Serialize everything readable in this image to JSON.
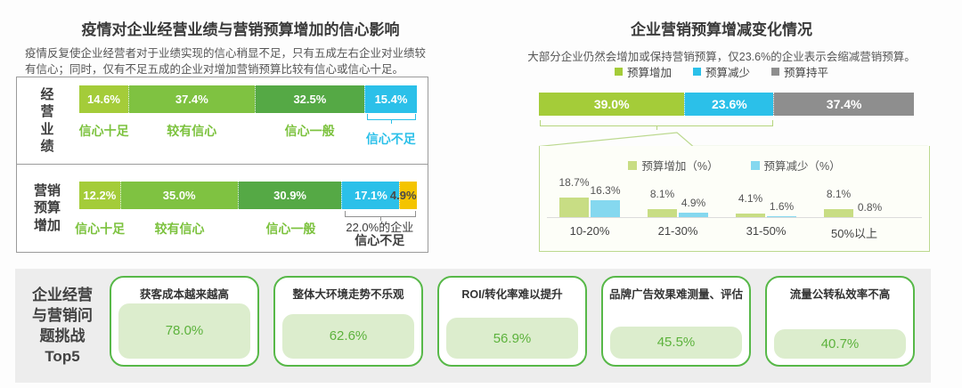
{
  "ui": {
    "left": {
      "title": "疫情对企业经营业绩与营销预算增加的信心影响",
      "subtitle": "疫情反复使企业经营者对于业绩实现的信心稍显不足，只有五成左右企业对业绩较有信心；同时，仅有不足五成的企业对增加营销预算比较有信心或信心十足。"
    },
    "right": {
      "title": "企业营销预算增减变化情况",
      "subtitle": "大部分企业仍然会增加或保持营销预算，仅23.6%的企业表示会缩减营销预算。",
      "legend": [
        {
          "label": "预算增加",
          "color": "#a4cc39"
        },
        {
          "label": "预算减少",
          "color": "#2bc0e9"
        },
        {
          "label": "预算持平",
          "color": "#8e8e8e"
        }
      ]
    },
    "bottom": {
      "label": "企业经营\n与营销问\n题挑战\nTop5"
    }
  },
  "chart_data": [
    {
      "id": "confidence-impact",
      "type": "bar",
      "variant": "horizontal-stacked-100",
      "title": "疫情对企业经营业绩与营销预算增加的信心影响",
      "unit": "%",
      "rows": [
        {
          "label": "经\n营\n业\n绩",
          "segments": [
            {
              "name": "信心十足",
              "value": 14.6,
              "color": "#a4cc39",
              "caption": "信心十足"
            },
            {
              "name": "较有信心",
              "value": 37.4,
              "color": "#7fc241",
              "caption": "较有信心"
            },
            {
              "name": "信心一般",
              "value": 32.5,
              "color": "#55a945",
              "caption": "信心一般"
            },
            {
              "name": "信心不足",
              "value": 15.4,
              "color": "#2bc0e9"
            }
          ],
          "brace": {
            "span_last": 1,
            "color": "#2bc0e9",
            "lines": [
              "信心不足"
            ],
            "text_color": "#2bc0e9",
            "bold_last_line": true
          }
        },
        {
          "label": "营销\n预算\n增加",
          "segments": [
            {
              "name": "信心十足",
              "value": 12.2,
              "color": "#a4cc39",
              "caption": "信心十足"
            },
            {
              "name": "较有信心",
              "value": 35.0,
              "color": "#7fc241",
              "caption": "较有信心"
            },
            {
              "name": "信心一般",
              "value": 30.9,
              "color": "#55a945",
              "caption": "信心一般"
            },
            {
              "name": "信心不足",
              "value": 17.1,
              "color": "#2bc0e9"
            },
            {
              "name": "信心不足",
              "value": 4.9,
              "color": "#f4c400",
              "label_color": "#4a4a4a"
            }
          ],
          "brace": {
            "span_last": 2,
            "color": "#919191",
            "lines": [
              "22.0%的企业",
              "信心不足"
            ],
            "text_color": "#3c3c3c",
            "bold_last_line": true
          }
        }
      ]
    },
    {
      "id": "budget-change",
      "type": "bar",
      "variant": "horizontal-stacked-100",
      "title": "企业营销预算增减变化情况",
      "unit": "%",
      "segments": [
        {
          "name": "预算增加",
          "value": 39.0,
          "color": "#a4cc39"
        },
        {
          "name": "预算减少",
          "value": 23.6,
          "color": "#2bc0e9"
        },
        {
          "name": "预算持平",
          "value": 37.4,
          "color": "#8e8e8e"
        }
      ],
      "brace": {
        "span_first": 2,
        "color": "#b5d57d"
      }
    },
    {
      "id": "budget-change-detail",
      "type": "bar",
      "variant": "grouped-vertical",
      "categories": [
        "10-20%",
        "21-30%",
        "31-50%",
        "50%以上"
      ],
      "series": [
        {
          "name": "预算增加（%）",
          "color": "#c8dd84",
          "values": [
            18.7,
            8.1,
            4.1,
            8.1
          ]
        },
        {
          "name": "预算减少（%）",
          "color": "#85d8ef",
          "values": [
            16.3,
            4.9,
            1.6,
            0.8
          ]
        }
      ],
      "ylim": [
        0,
        20
      ],
      "grid": false,
      "legend_position": "top"
    },
    {
      "id": "top5-challenges",
      "type": "bar",
      "variant": "card-list",
      "title": "企业经营与营销问题挑战Top5",
      "categories": [
        "获客成本越来越高",
        "整体大环境走势不乐观",
        "ROI/转化率难以提升",
        "品牌广告效果难测量、评估",
        "流量公转私效率不高"
      ],
      "values": [
        78.0,
        62.6,
        56.9,
        45.5,
        40.7
      ],
      "unit": "%"
    }
  ]
}
